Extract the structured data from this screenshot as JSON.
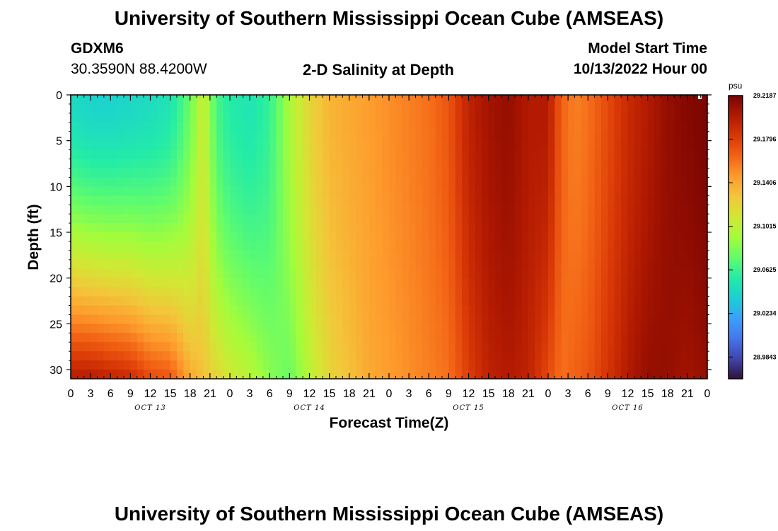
{
  "header": {
    "title": "University of Southern Mississippi Ocean Cube (AMSEAS)",
    "station": "GDXM6",
    "coords": "30.3590N  88.4200W",
    "plot_title": "2-D Salinity at Depth",
    "model_start_label": "Model Start Time",
    "model_start_value": "10/13/2022 Hour 00"
  },
  "footer": {
    "title": "University of Southern Mississippi Ocean Cube (AMSEAS)"
  },
  "chart_data": {
    "type": "heatmap",
    "xlabel": "Forecast Time(Z)",
    "ylabel": "Depth (ft)",
    "x_range_hours": [
      0,
      96
    ],
    "ylim": [
      0,
      31
    ],
    "y_inverted": true,
    "x_ticks": [
      "0",
      "3",
      "6",
      "9",
      "12",
      "15",
      "18",
      "21",
      "0",
      "3",
      "6",
      "9",
      "12",
      "15",
      "18",
      "21",
      "0",
      "3",
      "6",
      "9",
      "12",
      "15",
      "18",
      "21",
      "0",
      "3",
      "6",
      "9",
      "12",
      "15",
      "18",
      "21",
      "0"
    ],
    "day_labels": [
      "OCT 13",
      "OCT 14",
      "OCT 15",
      "OCT 16"
    ],
    "y_ticks": [
      "0",
      "5",
      "10",
      "15",
      "20",
      "25",
      "30"
    ],
    "colorbar": {
      "unit": "psu",
      "labels": [
        "29.2187",
        "29.1796",
        "29.1406",
        "29.1015",
        "29.0625",
        "29.0234",
        "28.9843"
      ],
      "min": 28.9648,
      "max": 29.2187,
      "colors": [
        "#30123b",
        "#4145ab",
        "#4675ed",
        "#39a2fc",
        "#1bcfd4",
        "#24eca6",
        "#61fc6c",
        "#a4fc3b",
        "#d1e834",
        "#f3c63a",
        "#fe9b2d",
        "#f36315",
        "#d93806",
        "#b11901",
        "#7a0402"
      ]
    },
    "salinity_profile_by_time": {
      "hours": [
        0,
        3,
        6,
        9,
        12,
        15,
        18,
        20,
        22,
        24,
        27,
        30,
        33,
        36,
        39,
        42,
        45,
        48,
        51,
        54,
        57,
        60,
        63,
        66,
        69,
        72,
        74,
        76,
        78,
        81,
        84,
        87,
        90,
        93,
        96
      ],
      "surface_psu": [
        29.045,
        29.04,
        29.04,
        29.042,
        29.045,
        29.05,
        29.075,
        29.11,
        29.065,
        29.055,
        29.05,
        29.06,
        29.095,
        29.12,
        29.135,
        29.14,
        29.145,
        29.15,
        29.155,
        29.16,
        29.17,
        29.195,
        29.205,
        29.21,
        29.2,
        29.2,
        29.165,
        29.155,
        29.16,
        29.175,
        29.19,
        29.2,
        29.21,
        29.215,
        29.218
      ],
      "bottom_psu": [
        29.2,
        29.2,
        29.195,
        29.19,
        29.175,
        29.17,
        29.14,
        29.13,
        29.12,
        29.11,
        29.1,
        29.085,
        29.075,
        29.1,
        29.12,
        29.13,
        29.14,
        29.145,
        29.15,
        29.155,
        29.16,
        29.18,
        29.195,
        29.2,
        29.195,
        29.175,
        29.16,
        29.165,
        29.17,
        29.185,
        29.2,
        29.21,
        29.21,
        29.205,
        29.21
      ]
    }
  }
}
